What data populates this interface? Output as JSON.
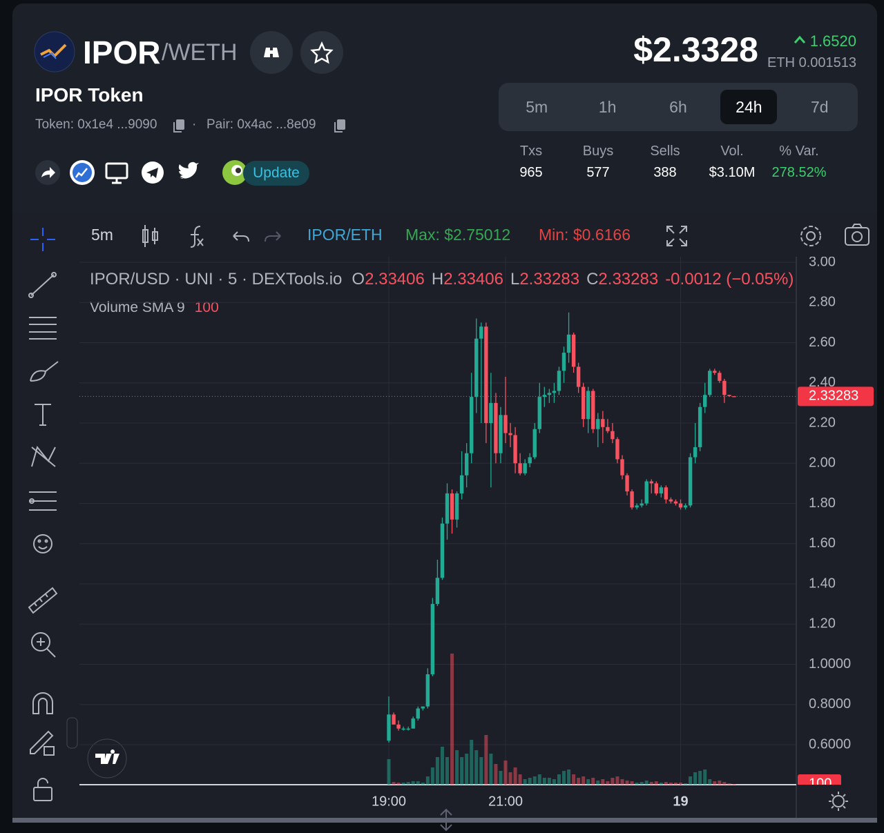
{
  "header": {
    "symbol": "IPOR",
    "quote": "/WETH",
    "name": "IPOR Token",
    "token_label": "Token: 0x1e4 ...9090",
    "pair_label": "Pair: 0x4ac ...8e09",
    "update": "Update",
    "price": "$2.3328",
    "change": "1.6520",
    "price_eth": "ETH 0.001513"
  },
  "timeframes": {
    "options": [
      "5m",
      "1h",
      "6h",
      "24h",
      "7d"
    ],
    "active": "24h"
  },
  "stats": [
    {
      "label": "Txs",
      "value": 965
    },
    {
      "label": "Buys",
      "value": 577
    },
    {
      "label": "Sells",
      "value": 388
    },
    {
      "label": "Vol.",
      "value": "$3.10M"
    },
    {
      "label": "% Var.",
      "value": "278.52%"
    }
  ],
  "toolbar": {
    "interval": "5m",
    "pair": "IPOR/ETH",
    "max": "Max: $2.75012",
    "min": "Min: $0.6166"
  },
  "chart_data": {
    "type": "candlestick",
    "legend_title": "IPOR/USD · UNI · 5 · DEXTools.io",
    "ohlc_labels": [
      "O",
      "H",
      "L",
      "C"
    ],
    "ohlc_values": [
      2.33406,
      2.33406,
      2.33283,
      2.33283
    ],
    "change": "-0.0012 (−0.05%)",
    "volume_sma_label": "Volume SMA 9",
    "volume_sma_value": 100,
    "last_price": 2.33283,
    "up_color": "#22ab94",
    "down_color": "#f7525f",
    "x": [
      "19:00",
      "19:05",
      "19:10",
      "19:15",
      "19:20",
      "19:25",
      "19:30",
      "19:35",
      "19:40",
      "19:45",
      "19:50",
      "19:55",
      "20:00",
      "20:05",
      "20:10",
      "20:15",
      "20:20",
      "20:25",
      "20:30",
      "20:35",
      "20:40",
      "20:45",
      "20:50",
      "20:55",
      "21:00",
      "21:05",
      "21:10",
      "21:15",
      "21:20",
      "21:25",
      "21:30",
      "21:35",
      "21:40",
      "21:45",
      "21:50",
      "21:55",
      "22:00",
      "22:05",
      "22:10",
      "22:15",
      "22:20",
      "22:25",
      "22:30",
      "22:35",
      "22:40",
      "22:45",
      "22:50",
      "22:55",
      "23:00",
      "23:05",
      "23:10",
      "23:15",
      "23:20",
      "23:25",
      "23:30",
      "23:35",
      "23:40",
      "23:45",
      "23:50",
      "23:55",
      "00:00",
      "00:05",
      "00:10",
      "00:15",
      "00:20",
      "00:25",
      "00:30",
      "00:35",
      "00:40",
      "00:45",
      "00:50",
      "00:55"
    ],
    "open": [
      0.62,
      0.75,
      0.7,
      0.68,
      0.68,
      0.68,
      0.73,
      0.78,
      0.79,
      0.95,
      1.3,
      1.43,
      1.7,
      1.85,
      1.72,
      1.85,
      1.94,
      2.05,
      2.33,
      2.62,
      2.68,
      2.2,
      2.3,
      2.05,
      2.24,
      2.15,
      2.14,
      2.0,
      1.95,
      2.0,
      2.03,
      2.17,
      2.33,
      2.34,
      2.35,
      2.36,
      2.46,
      2.55,
      2.64,
      2.48,
      2.38,
      2.22,
      2.36,
      2.17,
      2.22,
      2.18,
      2.16,
      2.12,
      2.02,
      1.94,
      1.86,
      1.78,
      1.79,
      1.8,
      1.91,
      1.9,
      1.85,
      1.88,
      1.82,
      1.81,
      1.8,
      1.78,
      1.79,
      2.03,
      2.08,
      2.28,
      2.34,
      2.46,
      2.45,
      2.41,
      2.34,
      2.33406
    ],
    "high": [
      0.84,
      0.76,
      0.72,
      0.69,
      0.69,
      0.74,
      0.79,
      0.79,
      0.98,
      1.33,
      1.52,
      1.73,
      1.9,
      1.87,
      1.86,
      2.06,
      2.1,
      2.45,
      2.72,
      2.7,
      2.7,
      2.45,
      2.35,
      2.28,
      2.43,
      2.2,
      2.18,
      2.05,
      2.02,
      2.05,
      2.2,
      2.4,
      2.38,
      2.37,
      2.4,
      2.48,
      2.58,
      2.75,
      2.65,
      2.5,
      2.4,
      2.38,
      2.37,
      2.25,
      2.26,
      2.22,
      2.2,
      2.13,
      2.04,
      1.95,
      1.87,
      1.8,
      1.82,
      1.92,
      1.92,
      1.91,
      1.89,
      1.89,
      1.83,
      1.82,
      1.82,
      1.8,
      2.05,
      2.2,
      2.3,
      2.4,
      2.47,
      2.47,
      2.46,
      2.42,
      2.34,
      2.33406
    ],
    "low": [
      0.61,
      0.7,
      0.67,
      0.67,
      0.67,
      0.68,
      0.72,
      0.77,
      0.78,
      0.94,
      1.29,
      1.42,
      1.62,
      1.65,
      1.68,
      1.82,
      1.88,
      2.0,
      2.25,
      2.2,
      2.1,
      1.88,
      2.0,
      2.0,
      2.1,
      2.08,
      1.95,
      1.94,
      1.94,
      1.98,
      2.02,
      2.15,
      2.28,
      2.3,
      2.3,
      2.34,
      2.4,
      2.5,
      2.45,
      2.35,
      2.18,
      2.15,
      2.15,
      2.08,
      2.1,
      2.15,
      2.1,
      2.0,
      1.92,
      1.84,
      1.77,
      1.77,
      1.78,
      1.79,
      1.85,
      1.84,
      1.83,
      1.8,
      1.8,
      1.79,
      1.77,
      1.77,
      1.78,
      2.0,
      2.06,
      2.25,
      2.33,
      2.44,
      2.4,
      2.3,
      2.33,
      2.33283
    ],
    "close": [
      0.75,
      0.7,
      0.68,
      0.68,
      0.68,
      0.73,
      0.78,
      0.79,
      0.95,
      1.3,
      1.43,
      1.7,
      1.85,
      1.72,
      1.85,
      1.94,
      2.05,
      2.33,
      2.62,
      2.68,
      2.2,
      2.3,
      2.05,
      2.24,
      2.15,
      2.14,
      2.0,
      1.95,
      2.0,
      2.03,
      2.17,
      2.33,
      2.34,
      2.35,
      2.36,
      2.46,
      2.55,
      2.64,
      2.48,
      2.38,
      2.22,
      2.36,
      2.17,
      2.22,
      2.18,
      2.16,
      2.12,
      2.02,
      1.94,
      1.86,
      1.78,
      1.79,
      1.8,
      1.91,
      1.9,
      1.85,
      1.88,
      1.82,
      1.81,
      1.8,
      1.78,
      1.79,
      2.03,
      2.08,
      2.28,
      2.34,
      2.46,
      2.45,
      2.41,
      2.34,
      2.33406,
      2.33283
    ],
    "volume": [
      3700,
      400,
      300,
      300,
      400,
      500,
      500,
      300,
      1200,
      2500,
      4000,
      5500,
      4000,
      19000,
      5000,
      4000,
      4500,
      6500,
      5000,
      4000,
      7200,
      4500,
      3000,
      2000,
      3500,
      1800,
      2500,
      1500,
      800,
      1000,
      1200,
      1500,
      1000,
      1000,
      800,
      1500,
      2000,
      2200,
      1500,
      1000,
      1200,
      800,
      1000,
      600,
      800,
      500,
      1000,
      1200,
      800,
      600,
      500,
      300,
      400,
      600,
      400,
      500,
      300,
      400,
      300,
      300,
      300,
      200,
      1200,
      1800,
      2000,
      2200,
      800,
      500,
      600,
      400,
      200,
      100
    ],
    "ylim": [
      0.4,
      3.0
    ],
    "yticks": [
      {
        "value": 3,
        "label": "3.00"
      },
      {
        "value": 2.8,
        "label": "2.80"
      },
      {
        "value": 2.6,
        "label": "2.60"
      },
      {
        "value": 2.4,
        "label": "2.40"
      },
      {
        "value": 2.2,
        "label": "2.20"
      },
      {
        "value": 2,
        "label": "2.00"
      },
      {
        "value": 1.8,
        "label": "1.80"
      },
      {
        "value": 1.6,
        "label": "1.60"
      },
      {
        "value": 1.4,
        "label": "1.40"
      },
      {
        "value": 1.2,
        "label": "1.20"
      },
      {
        "value": 1,
        "label": "1.0000"
      },
      {
        "value": 0.8,
        "label": "0.8000"
      },
      {
        "value": 0.6,
        "label": "0.6000"
      }
    ],
    "xticks": [
      {
        "value": "19:00",
        "label": "19:00"
      },
      {
        "value": "21:00",
        "label": "21:00"
      },
      {
        "value": "00:00",
        "label": "19"
      }
    ],
    "grid": true
  }
}
